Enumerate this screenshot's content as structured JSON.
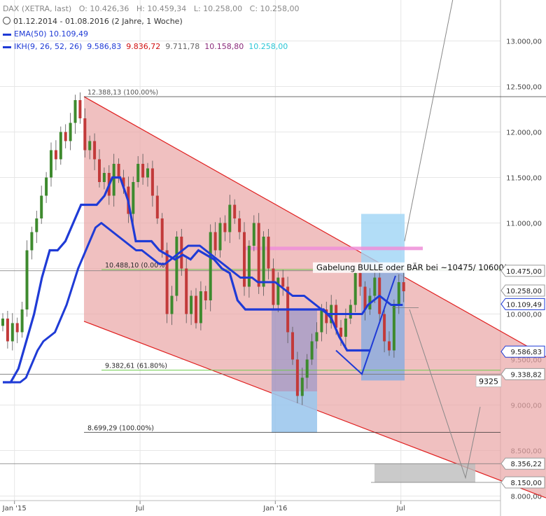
{
  "legend": {
    "title": "DAX (XETRA, last)",
    "ohlc": {
      "o": "O: 10.426,36",
      "h": "H: 10.459,34",
      "l": "L: 10.258,00",
      "c": "C: 10.258,00"
    },
    "range": "01.12.2014 - 01.08.2016 (2 Jahre, 1 Woche)",
    "ema_label": "EMA(50)",
    "ema_value": "10.109,49",
    "ikh_label": "IKH(9, 26, 52, 26)",
    "ikh_v1": "9.586,83",
    "ikh_v2": "9.836,72",
    "ikh_v3": "9.711,78",
    "ikh_v4": "10.158,80",
    "ikh_v5": "10.258,00"
  },
  "colors": {
    "candle_up": "#3e8a2e",
    "candle_down": "#c23a3a",
    "channel_fill": "#e9a5a5",
    "channel_line": "#e02020",
    "ema": "#1f3bd6",
    "ikh": "#1f3bd6",
    "fib_line": "#6ccc4a",
    "zone_blue": "#9fd4f5",
    "zone_purple": "#8a8fc9",
    "pink_band": "#ef8ed8"
  },
  "chart_data": {
    "type": "candlestick",
    "y_ticks": [
      "13.000,00",
      "12.500,00",
      "12.000,00",
      "11.500,00",
      "11.000,00",
      "10.500,00",
      "10.000,00",
      "9.500,00",
      "9.000,00",
      "8.500,00",
      "8.000,00"
    ],
    "y_tick_values": [
      13000,
      12500,
      12000,
      11500,
      11000,
      10500,
      10000,
      9500,
      9000,
      8500,
      8000
    ],
    "ylim": [
      7950,
      13450
    ],
    "x_ticks": [
      "Jan '15",
      "Jul",
      "Jan '16",
      "Jul"
    ],
    "x_tick_index": [
      3,
      29,
      57,
      83
    ],
    "n_weeks": 100,
    "candles_close": [
      9950,
      9700,
      9900,
      9800,
      10050,
      10700,
      10900,
      11050,
      11300,
      11500,
      11800,
      11700,
      12000,
      11900,
      12100,
      12350,
      12150,
      11800,
      11900,
      11700,
      11450,
      11550,
      11300,
      11650,
      11500,
      11400,
      11100,
      11450,
      11650,
      11500,
      11600,
      11300,
      11050,
      10700,
      10000,
      10200,
      10850,
      10500,
      10000,
      10200,
      9900,
      10250,
      10150,
      10900,
      10700,
      11000,
      10900,
      11200,
      11050,
      10900,
      10300,
      10750,
      11000,
      10300,
      10850,
      10500,
      10100,
      10400,
      10300,
      9800,
      9500,
      9100,
      9300,
      9500,
      9700,
      9800,
      10050,
      9900,
      10100,
      9850,
      9750,
      9950,
      10100,
      10450,
      10300,
      10050,
      10200,
      10400,
      10000,
      9700,
      9600,
      10100,
      10350,
      10250
    ],
    "ema50": [
      9250,
      9250,
      9250,
      9250,
      9300,
      9450,
      9600,
      9700,
      9750,
      9800,
      9950,
      10100,
      10300,
      10500,
      10650,
      10800,
      10950,
      11000,
      10950,
      10900,
      10850,
      10800,
      10750,
      10700,
      10700,
      10650,
      10600,
      10550,
      10550,
      10600,
      10650,
      10700,
      10750,
      10750,
      10750,
      10700,
      10650,
      10600,
      10550,
      10500,
      10450,
      10400,
      10400,
      10400,
      10350,
      10350,
      10350,
      10350,
      10300,
      10250,
      10200,
      10200,
      10200,
      10150,
      10100,
      10050,
      10000,
      10000,
      10000,
      10000,
      10000,
      10000,
      10000,
      10100,
      10150,
      10200,
      10150,
      10100,
      10100,
      10100
    ],
    "ikh_tenkan": [
      9250,
      9250,
      9400,
      9700,
      10000,
      10400,
      10700,
      10700,
      10800,
      11000,
      11200,
      11200,
      11200,
      11300,
      11500,
      11500,
      11250,
      10800,
      10800,
      10800,
      10700,
      10650,
      10600,
      10650,
      10600,
      10700,
      10650,
      10600,
      10500,
      10450,
      10150,
      10050,
      10050,
      10050,
      10050,
      10050,
      10050,
      10050,
      10050,
      10050,
      10050,
      10050,
      9950,
      9750,
      9600,
      9600,
      9600,
      9600
    ],
    "fib_levels": [
      {
        "label": "12.388,13 (100.00%)",
        "value": 12388
      },
      {
        "label": "10.488,10 (0.00%)",
        "value": 10488
      },
      {
        "label": "9.382,61 (61.80%)",
        "value": 9383
      },
      {
        "label": "8.699,29 (100.00%)",
        "value": 8699
      }
    ],
    "price_labels": [
      "10.475,00",
      "10.258,00",
      "10.109,49",
      "9.586,83",
      "9.338,82",
      "8.356,22",
      "8.150,00"
    ],
    "price_label_values": [
      10475,
      10258,
      10109,
      9587,
      9339,
      8356,
      8150
    ],
    "annotation": "Gabelung BULLE oder BÄR bei ~10475/ 10600!",
    "annotation_level": "9325"
  }
}
